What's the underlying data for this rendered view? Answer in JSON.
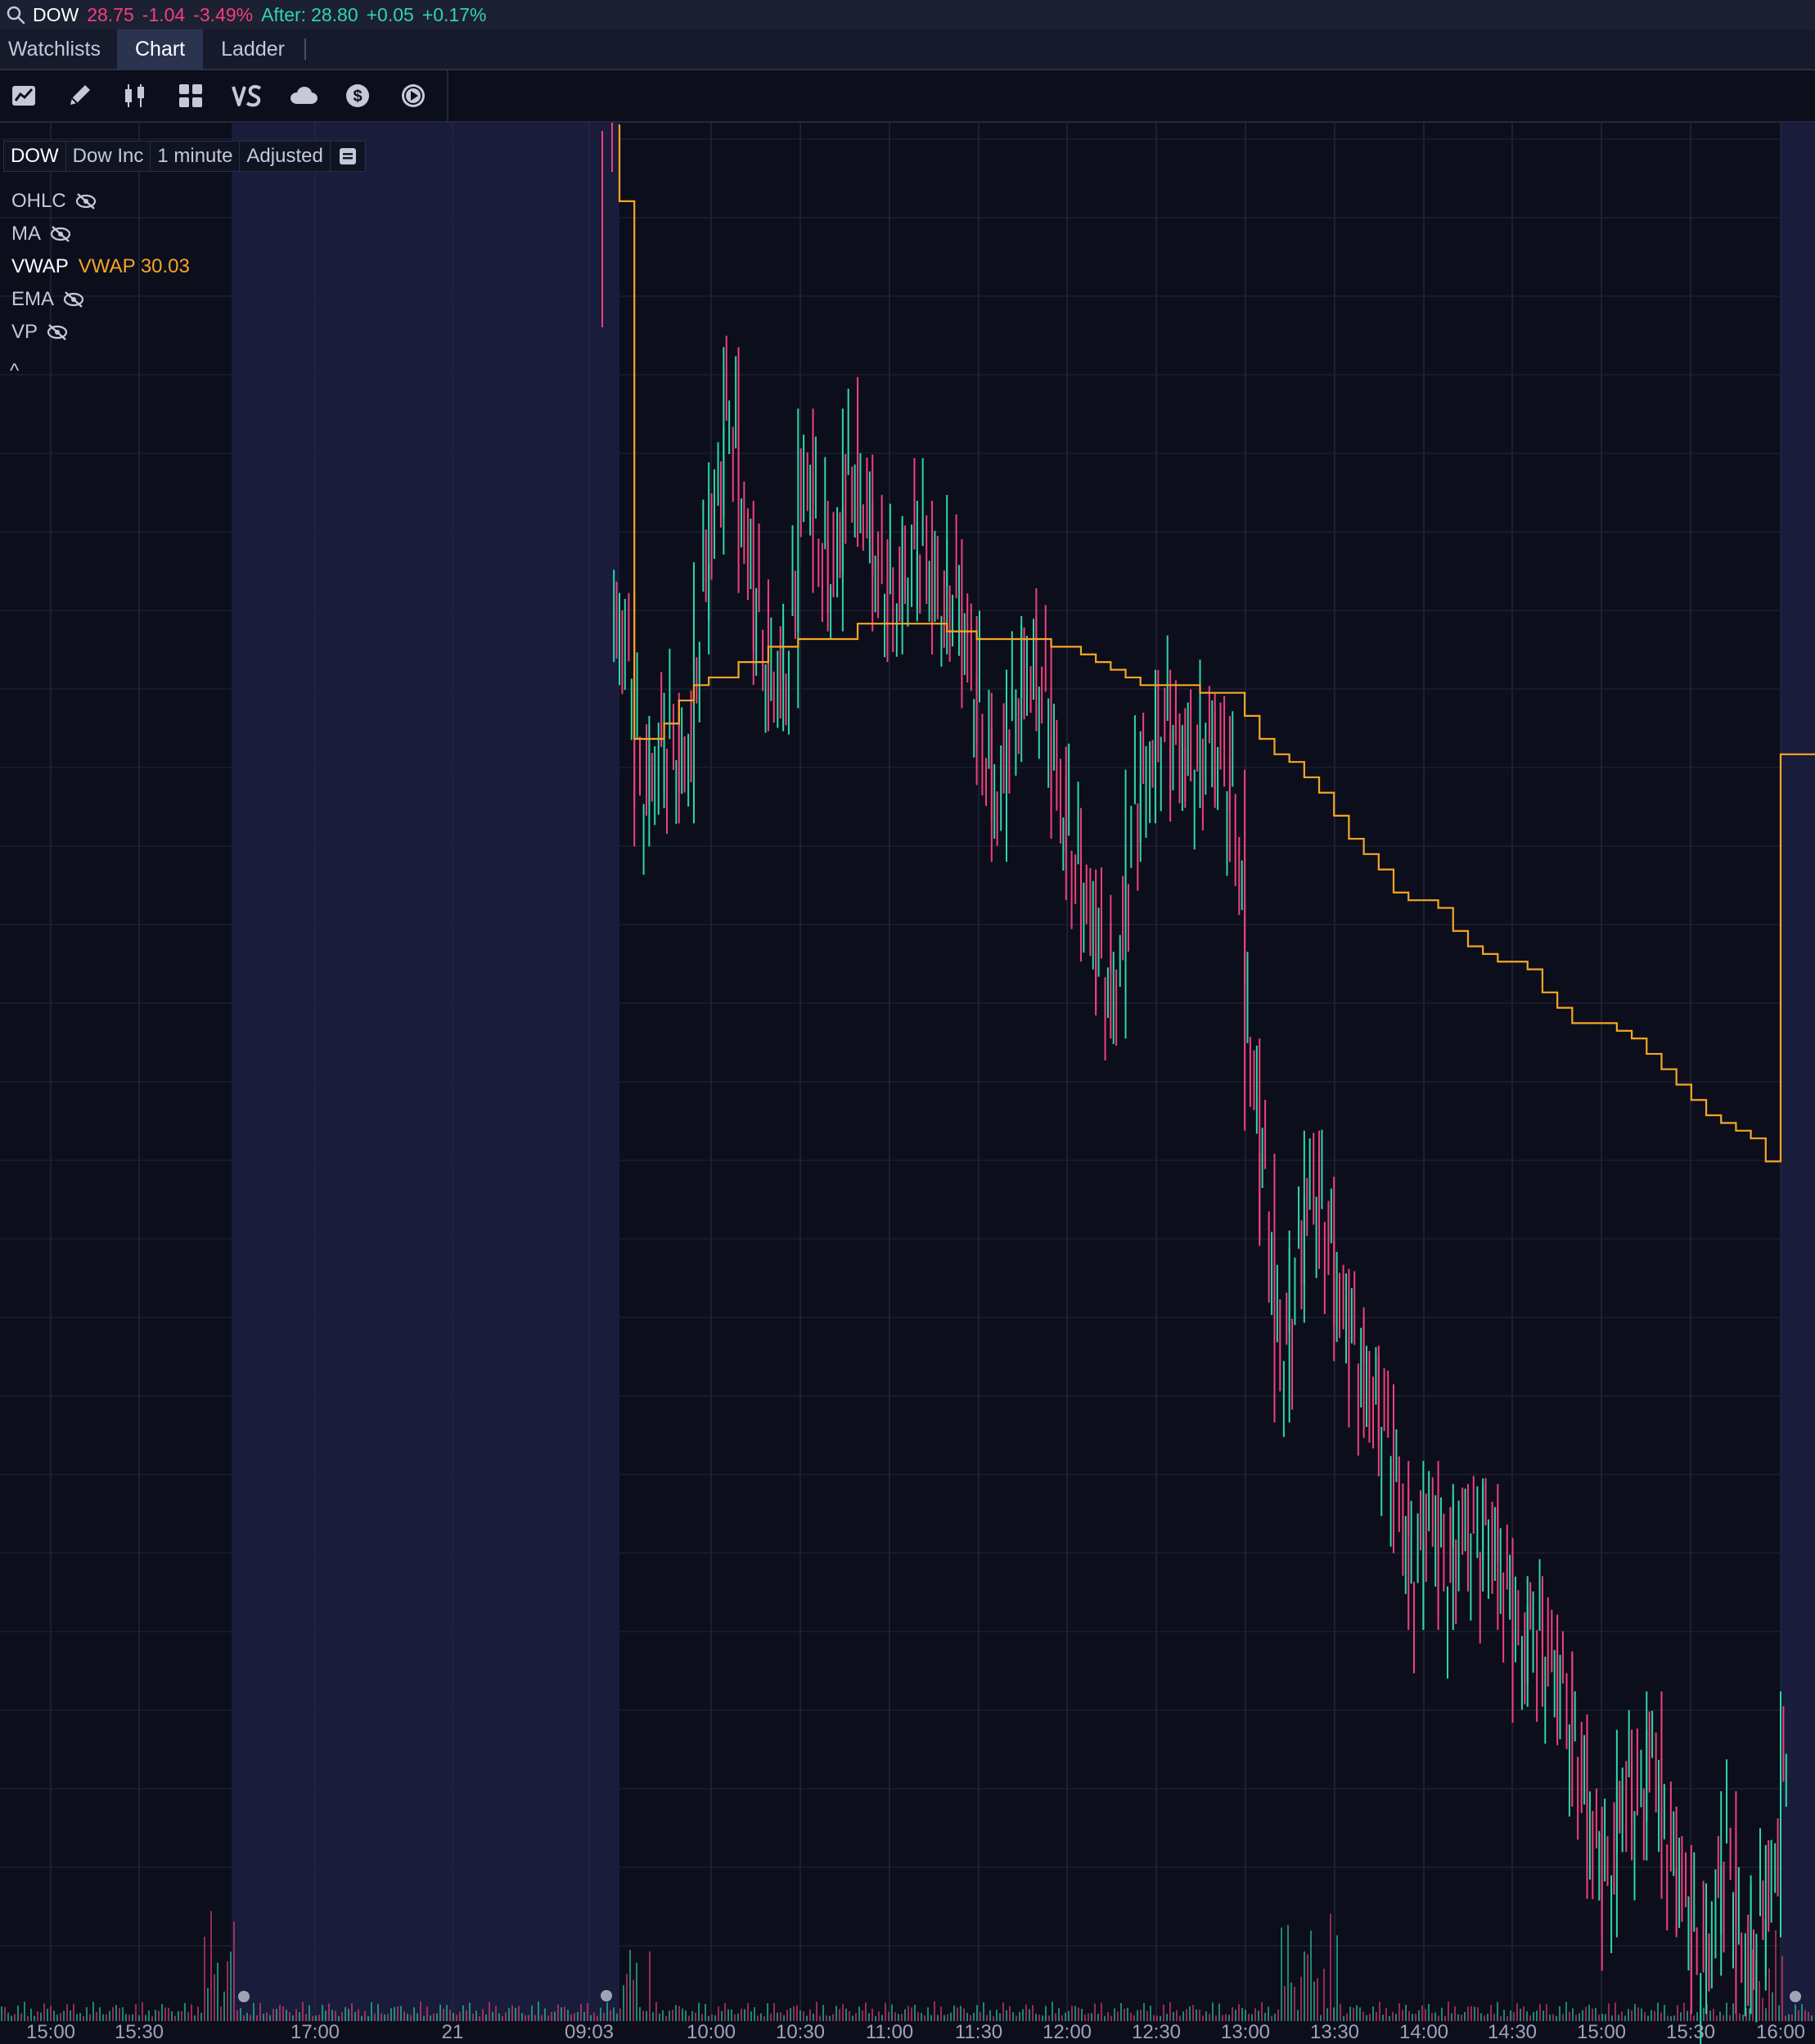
{
  "quote": {
    "symbol": "DOW",
    "last": "28.75",
    "change": "-1.04",
    "change_pct": "-3.49%",
    "after_label": "After:",
    "after_price": "28.80",
    "after_change": "+0.05",
    "after_change_pct": "+0.17%"
  },
  "tabs": [
    {
      "label": "Watchlists"
    },
    {
      "label": "Chart"
    },
    {
      "label": "Ladder"
    }
  ],
  "toolbar": {
    "tools": [
      "studies-icon",
      "draw-icon",
      "chart-style-icon",
      "layout-grid-icon",
      "compare-vs-icon",
      "cloud-icon",
      "dollar-icon",
      "play-icon"
    ]
  },
  "legend": {
    "symbol": "DOW",
    "company": "Dow Inc",
    "interval": "1 minute",
    "adjustment": "Adjusted",
    "studies": [
      {
        "name": "OHLC",
        "visible": false
      },
      {
        "name": "MA",
        "visible": false
      },
      {
        "name": "VWAP",
        "visible": true,
        "value": "VWAP 30.03"
      },
      {
        "name": "EMA",
        "visible": false
      },
      {
        "name": "VP",
        "visible": false
      }
    ],
    "collapse": "^"
  },
  "colors": {
    "up": "#2fd6a8",
    "down": "#f0407a",
    "vwap": "#f5a623",
    "background": "#0c0e1c",
    "extended_hours_bg": "#191c3a"
  },
  "chart_data": {
    "type": "line",
    "x_ticks": [
      "15:00",
      "15:30",
      "17:00",
      "21",
      "09:03",
      "10:00",
      "10:30",
      "11:00",
      "11:30",
      "12:00",
      "12:30",
      "13:00",
      "13:30",
      "14:00",
      "14:30",
      "15:00",
      "15:30",
      "16:00"
    ],
    "ylim": [
      28.4,
      30.85
    ],
    "series": [
      {
        "kind": "price",
        "x": [
          "09:30",
          "09:35",
          "09:40",
          "09:45",
          "09:50",
          "09:55",
          "10:00",
          "10:05",
          "10:10",
          "10:15",
          "10:20",
          "10:25",
          "10:30",
          "10:35",
          "10:40",
          "10:45",
          "10:50",
          "10:55",
          "11:00",
          "11:05",
          "11:10",
          "11:15",
          "11:20",
          "11:25",
          "11:30",
          "11:35",
          "11:40",
          "11:45",
          "11:50",
          "11:55",
          "12:00",
          "12:05",
          "12:10",
          "12:15",
          "12:20",
          "12:25",
          "12:30",
          "12:35",
          "12:40",
          "12:45",
          "12:50",
          "12:55",
          "13:00",
          "13:05",
          "13:10",
          "13:15",
          "13:20",
          "13:25",
          "13:30",
          "13:35",
          "13:40",
          "13:45",
          "13:50",
          "13:55",
          "14:00",
          "14:05",
          "14:10",
          "14:15",
          "14:20",
          "14:25",
          "14:30",
          "14:35",
          "14:40",
          "14:45",
          "14:50",
          "14:55",
          "15:00",
          "15:05",
          "15:10",
          "15:15",
          "15:20",
          "15:25",
          "15:30",
          "15:35",
          "15:40",
          "15:45",
          "15:50",
          "15:55",
          "16:00"
        ],
        "y": [
          30.18,
          29.97,
          30.02,
          30.05,
          30.0,
          30.22,
          30.35,
          30.5,
          30.3,
          30.18,
          30.12,
          30.15,
          30.42,
          30.3,
          30.25,
          30.42,
          30.36,
          30.25,
          30.22,
          30.28,
          30.3,
          30.22,
          30.25,
          30.15,
          30.05,
          29.95,
          30.08,
          30.15,
          30.12,
          29.98,
          29.9,
          29.82,
          29.75,
          29.72,
          29.95,
          30.0,
          30.08,
          30.03,
          30.02,
          30.05,
          30.02,
          29.95,
          29.6,
          29.45,
          29.22,
          29.35,
          29.48,
          29.42,
          29.3,
          29.25,
          29.2,
          29.15,
          29.05,
          28.95,
          29.05,
          28.95,
          29.02,
          29.0,
          29.02,
          28.95,
          28.85,
          28.9,
          28.85,
          28.8,
          28.72,
          28.6,
          28.55,
          28.7,
          28.65,
          28.75,
          28.6,
          28.55,
          28.45,
          28.5,
          28.62,
          28.45,
          28.5,
          28.55,
          28.75
        ]
      },
      {
        "kind": "vwap",
        "x": [
          "09:30",
          "09:35",
          "09:40",
          "09:45",
          "09:50",
          "09:55",
          "10:00",
          "10:05",
          "10:10",
          "10:15",
          "10:20",
          "10:25",
          "10:30",
          "10:35",
          "10:40",
          "10:45",
          "10:50",
          "10:55",
          "11:00",
          "11:05",
          "11:10",
          "11:15",
          "11:20",
          "11:25",
          "11:30",
          "11:35",
          "11:40",
          "11:45",
          "11:50",
          "11:55",
          "12:00",
          "12:05",
          "12:10",
          "12:15",
          "12:20",
          "12:25",
          "12:30",
          "12:35",
          "12:40",
          "12:45",
          "12:50",
          "12:55",
          "13:00",
          "13:05",
          "13:10",
          "13:15",
          "13:20",
          "13:25",
          "13:30",
          "13:35",
          "13:40",
          "13:45",
          "13:50",
          "13:55",
          "14:00",
          "14:05",
          "14:10",
          "14:15",
          "14:20",
          "14:25",
          "14:30",
          "14:35",
          "14:40",
          "14:45",
          "14:50",
          "14:55",
          "15:00",
          "15:05",
          "15:10",
          "15:15",
          "15:20",
          "15:25",
          "15:30",
          "15:35",
          "15:40",
          "15:45",
          "15:50",
          "15:55",
          "16:00"
        ],
        "y": [
          30.75,
          30.05,
          30.05,
          30.07,
          30.1,
          30.12,
          30.13,
          30.13,
          30.15,
          30.15,
          30.17,
          30.17,
          30.18,
          30.18,
          30.18,
          30.18,
          30.2,
          30.2,
          30.2,
          30.2,
          30.2,
          30.2,
          30.19,
          30.19,
          30.18,
          30.18,
          30.18,
          30.18,
          30.18,
          30.17,
          30.17,
          30.16,
          30.15,
          30.14,
          30.13,
          30.12,
          30.12,
          30.12,
          30.12,
          30.11,
          30.11,
          30.11,
          30.08,
          30.05,
          30.03,
          30.02,
          30.0,
          29.98,
          29.95,
          29.92,
          29.9,
          29.88,
          29.85,
          29.84,
          29.84,
          29.83,
          29.8,
          29.78,
          29.77,
          29.76,
          29.76,
          29.75,
          29.72,
          29.7,
          29.68,
          29.68,
          29.68,
          29.67,
          29.66,
          29.64,
          29.62,
          29.6,
          29.58,
          29.56,
          29.55,
          29.54,
          29.53,
          29.5,
          30.03
        ]
      }
    ]
  }
}
